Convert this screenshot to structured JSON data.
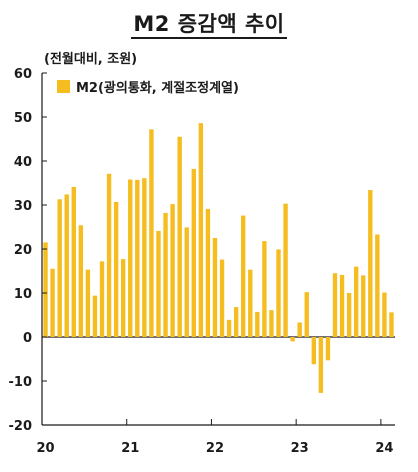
{
  "chart_data": {
    "type": "bar",
    "title": "M2 증감액 추이",
    "unit_label": "(전월대비, 조원)",
    "legend": [
      "M2(광의통화, 계절조정계열)"
    ],
    "bar_color": "#F5BD1F",
    "ylim": [
      -20,
      60
    ],
    "yticks": [
      60,
      50,
      40,
      30,
      20,
      10,
      0,
      -10,
      -20
    ],
    "xticks": [
      {
        "label": "20",
        "index": 0
      },
      {
        "label": "21",
        "index": 12
      },
      {
        "label": "22",
        "index": 24
      },
      {
        "label": "23",
        "index": 36
      },
      {
        "label": "24",
        "index": 48
      }
    ],
    "grid": false,
    "legend_position": "top-left",
    "series": [
      {
        "name": "M2(광의통화, 계절조정계열)",
        "values": [
          21.5,
          15.5,
          31.3,
          32.4,
          34.1,
          25.4,
          15.3,
          9.4,
          17.2,
          37.1,
          30.7,
          17.7,
          35.8,
          35.7,
          36.1,
          47.2,
          24.1,
          28.2,
          30.2,
          45.5,
          24.9,
          38.2,
          48.6,
          29.1,
          22.5,
          17.6,
          3.9,
          6.8,
          27.6,
          15.3,
          5.7,
          21.8,
          6.1,
          19.9,
          30.3,
          -1.0,
          3.3,
          10.2,
          -6.2,
          -12.7,
          -5.3,
          14.5,
          14.1,
          10.0,
          16.0,
          14.0,
          33.4,
          23.3,
          10.1,
          5.6
        ]
      }
    ]
  }
}
